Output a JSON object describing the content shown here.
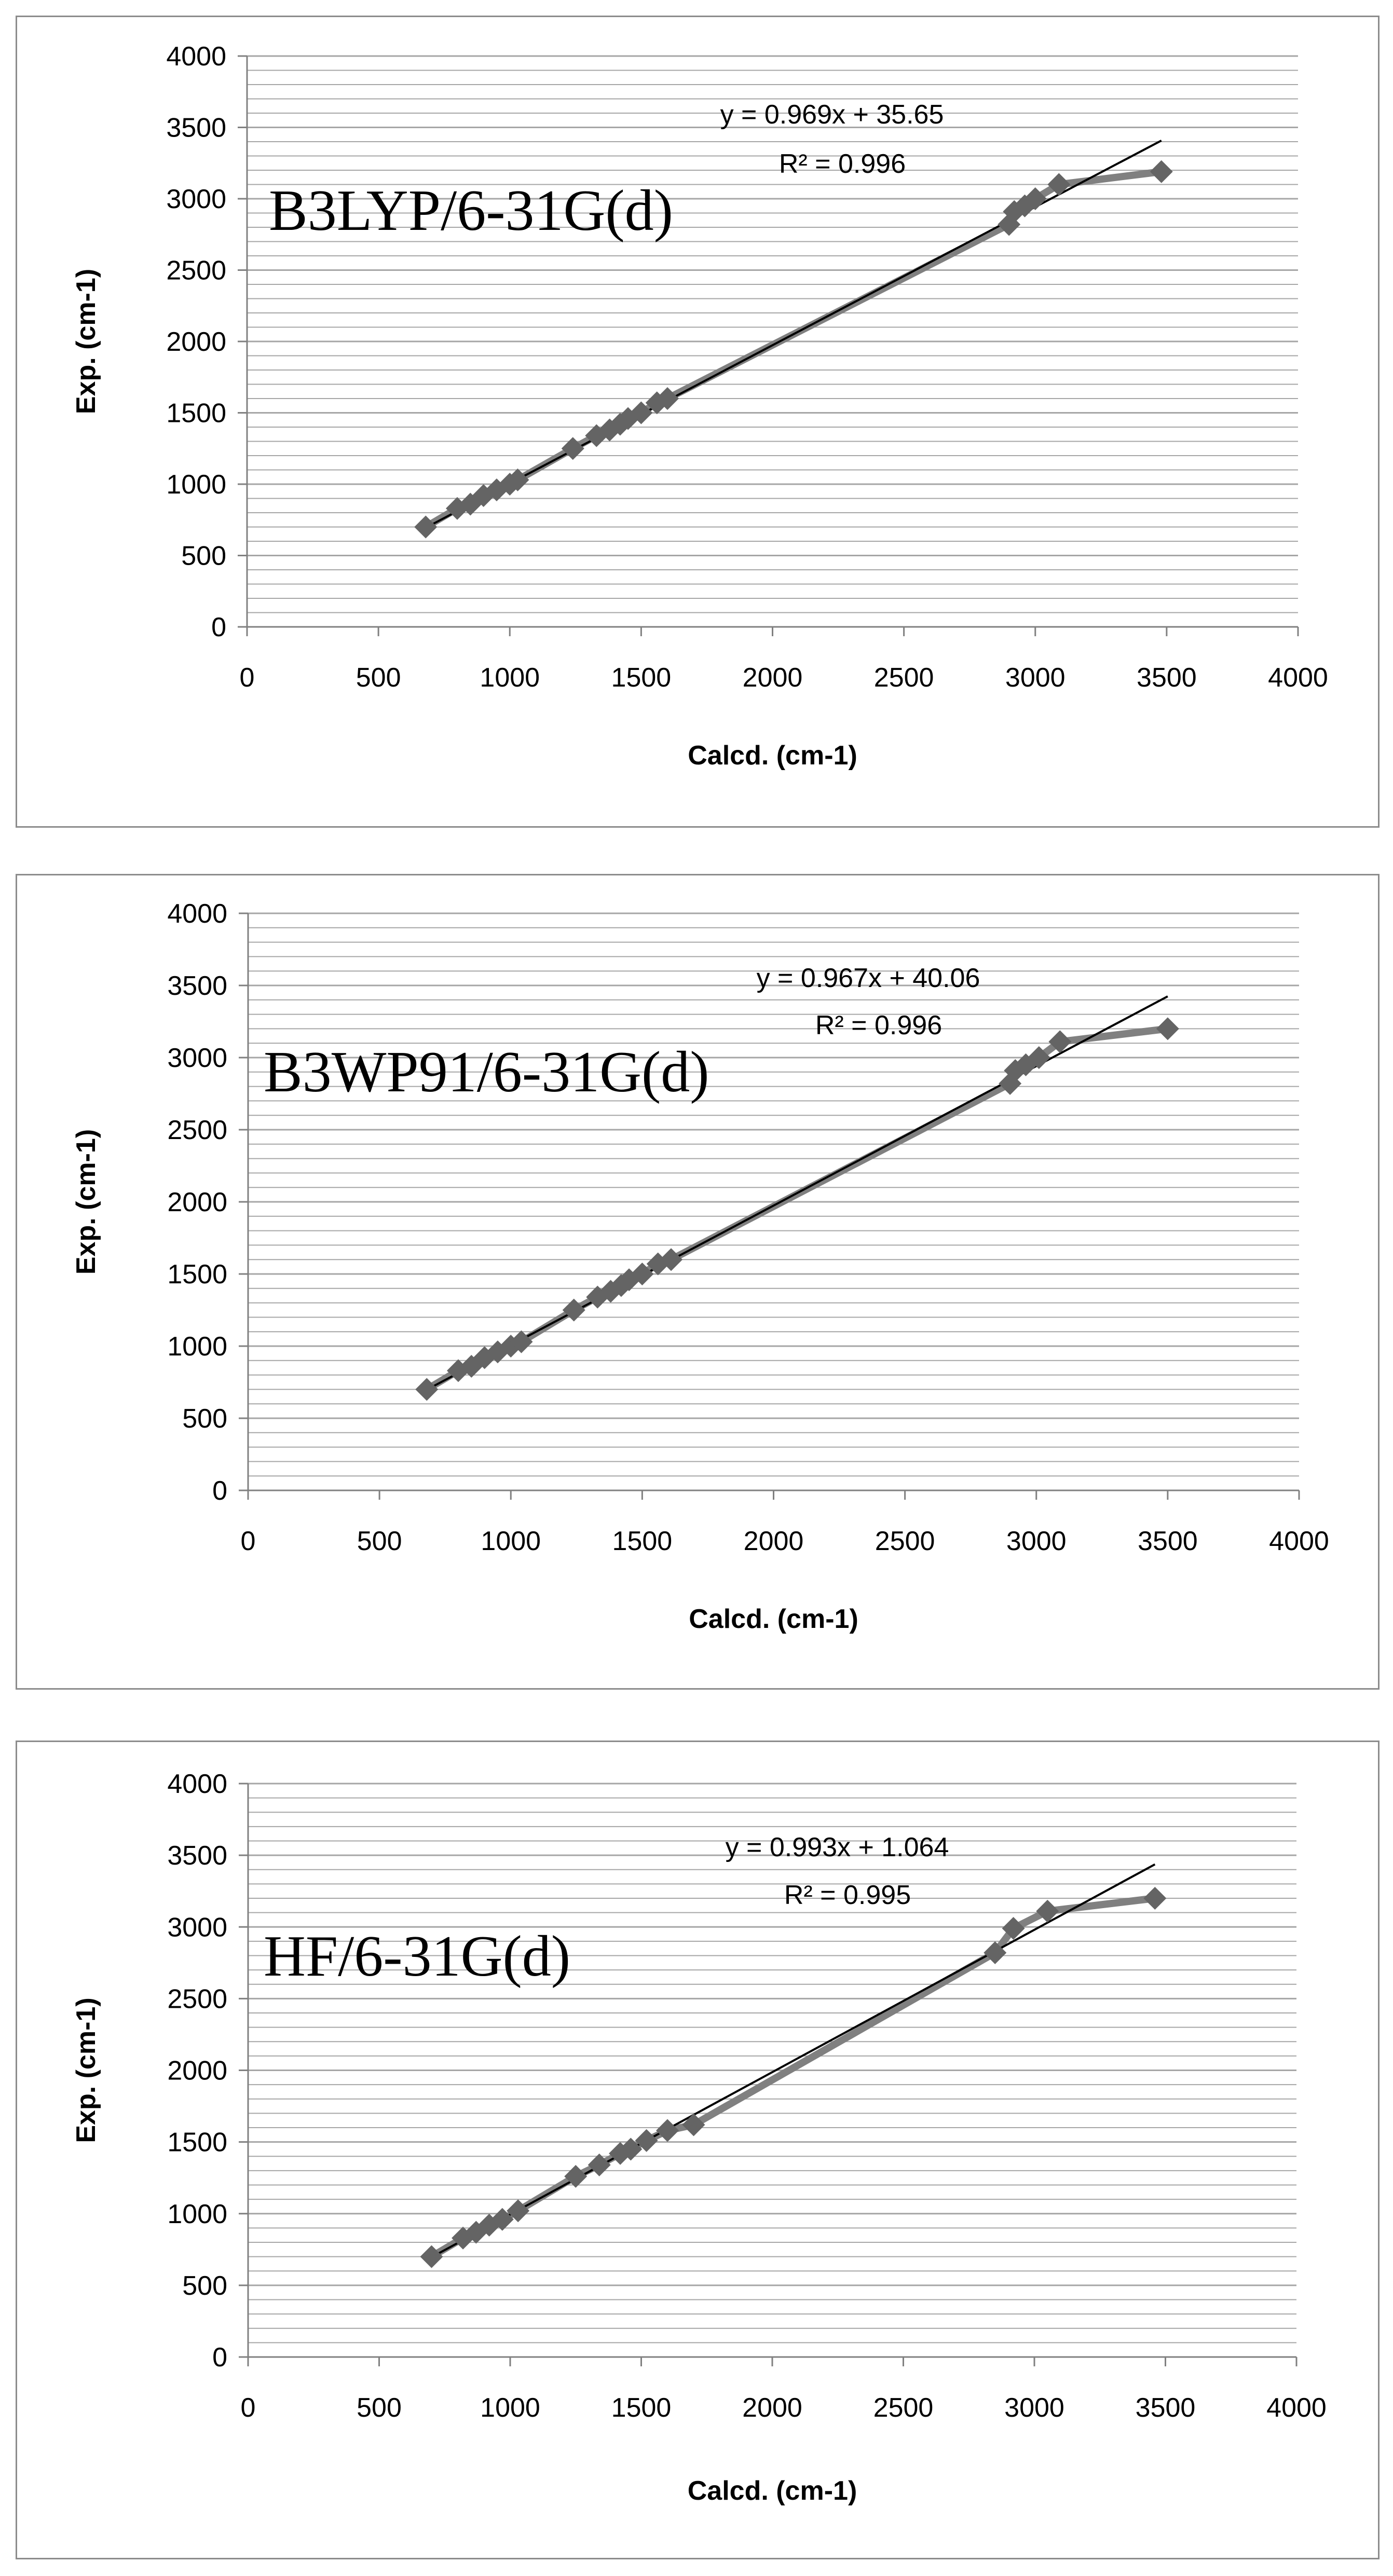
{
  "chart_data": [
    {
      "type": "scatter",
      "method_label": "B3LYP/6-31G(d)",
      "xlabel": "Calcd. (cm-1)",
      "ylabel": "Exp. (cm-1)",
      "xlim": [
        0,
        4000
      ],
      "ylim": [
        0,
        4000
      ],
      "x_ticks": [
        0,
        500,
        1000,
        1500,
        2000,
        2500,
        3000,
        3500,
        4000
      ],
      "y_ticks": [
        0,
        500,
        1000,
        1500,
        2000,
        2500,
        3000,
        3500,
        4000
      ],
      "minor_grid_step": 100,
      "grid": true,
      "trendline": {
        "slope": 0.969,
        "intercept": 35.65,
        "x_range": [
          680,
          3480
        ],
        "equation": "y = 0.969x + 35.65",
        "r2": "R² = 0.996"
      },
      "series": [
        {
          "points": [
            [
              680,
              700
            ],
            [
              800,
              830
            ],
            [
              850,
              860
            ],
            [
              900,
              920
            ],
            [
              950,
              960
            ],
            [
              1000,
              1000
            ],
            [
              1030,
              1030
            ],
            [
              1240,
              1250
            ],
            [
              1330,
              1340
            ],
            [
              1380,
              1380
            ],
            [
              1420,
              1420
            ],
            [
              1450,
              1460
            ],
            [
              1500,
              1500
            ],
            [
              1560,
              1570
            ],
            [
              1600,
              1600
            ],
            [
              2900,
              2820
            ],
            [
              2920,
              2910
            ],
            [
              2960,
              2950
            ],
            [
              3000,
              3000
            ],
            [
              3090,
              3100
            ],
            [
              3480,
              3190
            ]
          ]
        }
      ]
    },
    {
      "type": "scatter",
      "method_label": "B3WP91/6-31G(d)",
      "xlabel": "Calcd. (cm-1)",
      "ylabel": "Exp. (cm-1)",
      "xlim": [
        0,
        4000
      ],
      "ylim": [
        0,
        4000
      ],
      "x_ticks": [
        0,
        500,
        1000,
        1500,
        2000,
        2500,
        3000,
        3500,
        4000
      ],
      "y_ticks": [
        0,
        500,
        1000,
        1500,
        2000,
        2500,
        3000,
        3500,
        4000
      ],
      "minor_grid_step": 100,
      "grid": true,
      "trendline": {
        "slope": 0.967,
        "intercept": 40.06,
        "x_range": [
          680,
          3500
        ],
        "equation": "y = 0.967x + 40.06",
        "r2": "R² = 0.996"
      },
      "series": [
        {
          "points": [
            [
              680,
              700
            ],
            [
              800,
              830
            ],
            [
              850,
              860
            ],
            [
              900,
              920
            ],
            [
              950,
              960
            ],
            [
              1000,
              1000
            ],
            [
              1040,
              1030
            ],
            [
              1240,
              1250
            ],
            [
              1330,
              1340
            ],
            [
              1380,
              1380
            ],
            [
              1420,
              1420
            ],
            [
              1450,
              1460
            ],
            [
              1500,
              1500
            ],
            [
              1560,
              1570
            ],
            [
              1610,
              1600
            ],
            [
              2900,
              2820
            ],
            [
              2920,
              2910
            ],
            [
              2960,
              2950
            ],
            [
              3010,
              3000
            ],
            [
              3090,
              3110
            ],
            [
              3500,
              3200
            ]
          ]
        }
      ]
    },
    {
      "type": "scatter",
      "method_label": "HF/6-31G(d)",
      "xlabel": "Calcd. (cm-1)",
      "ylabel": "Exp. (cm-1)",
      "xlim": [
        0,
        4000
      ],
      "ylim": [
        0,
        4000
      ],
      "x_ticks": [
        0,
        500,
        1000,
        1500,
        2000,
        2500,
        3000,
        3500,
        4000
      ],
      "y_ticks": [
        0,
        500,
        1000,
        1500,
        2000,
        2500,
        3000,
        3500,
        4000
      ],
      "minor_grid_step": 100,
      "grid": true,
      "trendline": {
        "slope": 0.993,
        "intercept": 1.064,
        "x_range": [
          700,
          3460
        ],
        "equation": "y = 0.993x + 1.064",
        "r2": "R² = 0.995"
      },
      "series": [
        {
          "points": [
            [
              700,
              700
            ],
            [
              820,
              830
            ],
            [
              870,
              870
            ],
            [
              920,
              920
            ],
            [
              970,
              960
            ],
            [
              1030,
              1020
            ],
            [
              1250,
              1260
            ],
            [
              1340,
              1340
            ],
            [
              1420,
              1420
            ],
            [
              1460,
              1450
            ],
            [
              1520,
              1510
            ],
            [
              1600,
              1580
            ],
            [
              1700,
              1620
            ],
            [
              2850,
              2820
            ],
            [
              2920,
              2990
            ],
            [
              3050,
              3110
            ],
            [
              3460,
              3200
            ]
          ]
        }
      ]
    }
  ],
  "style": {
    "marker_color": "#646464",
    "line_color": "#808080",
    "trend_color": "#000000",
    "grid_color": "#a6a6a6"
  }
}
